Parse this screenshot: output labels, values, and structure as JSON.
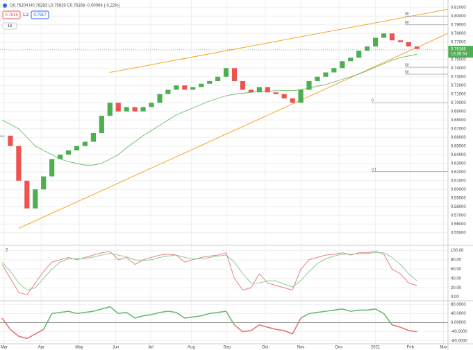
{
  "header": {
    "ohlc": "O0.76204 H0.76283 L0.75829 C0.76168 -0.00064 (-0.22%)",
    "sell": "0.7616",
    "spread": "1.2",
    "buy": "0.7617",
    "indicator_count": "16"
  },
  "chart_data": [
    {
      "type": "candlestick",
      "up_color": "#4caf50",
      "down_color": "#ef5350",
      "x": [
        0,
        1,
        2,
        3,
        4,
        5,
        6,
        7,
        8,
        9,
        10,
        11,
        12,
        13,
        14,
        15,
        16,
        17,
        18,
        19,
        20,
        21,
        22,
        23,
        24,
        25,
        26,
        27,
        28,
        29,
        30,
        31,
        32,
        33,
        34,
        35,
        36,
        37,
        38,
        39,
        40,
        41,
        42,
        43,
        44,
        45,
        46,
        47,
        48,
        49,
        50
      ],
      "values": [
        0.662,
        0.65,
        0.61,
        0.578,
        0.6,
        0.615,
        0.635,
        0.64,
        0.645,
        0.65,
        0.655,
        0.665,
        0.685,
        0.7,
        0.69,
        0.695,
        0.69,
        0.695,
        0.7,
        0.71,
        0.715,
        0.72,
        0.715,
        0.718,
        0.722,
        0.725,
        0.73,
        0.74,
        0.725,
        0.715,
        0.712,
        0.718,
        0.712,
        0.71,
        0.705,
        0.7,
        0.715,
        0.725,
        0.73,
        0.735,
        0.74,
        0.748,
        0.752,
        0.76,
        0.765,
        0.775,
        0.78,
        0.772,
        0.77,
        0.765,
        0.762
      ],
      "ma": {
        "color": "#66bb6a",
        "values": [
          0.68,
          0.675,
          0.67,
          0.66,
          0.65,
          0.645,
          0.64,
          0.635,
          0.632,
          0.63,
          0.628,
          0.628,
          0.63,
          0.635,
          0.64,
          0.648,
          0.655,
          0.662,
          0.668,
          0.674,
          0.68,
          0.686,
          0.69,
          0.694,
          0.698,
          0.702,
          0.705,
          0.708,
          0.71,
          0.711,
          0.712,
          0.713,
          0.713,
          0.714,
          0.714,
          0.714,
          0.715,
          0.717,
          0.719,
          0.721,
          0.724,
          0.727,
          0.73,
          0.733,
          0.737,
          0.741,
          0.745,
          0.749,
          0.752,
          0.754,
          0.756
        ]
      },
      "trendlines": [
        {
          "color": "#f5a623",
          "x": [
            2,
            56
          ],
          "y": [
            0.555,
            0.79
          ]
        },
        {
          "color": "#f5a623",
          "x": [
            13,
            56
          ],
          "y": [
            0.735,
            0.812
          ]
        }
      ],
      "levels": [
        {
          "value": 0.8,
          "label": "90"
        },
        {
          "value": 0.79,
          "label": "80"
        },
        {
          "value": 0.741,
          "label": "50"
        },
        {
          "value": 0.733,
          "label": "50"
        },
        {
          "value": 0.7,
          "label": "0"
        },
        {
          "value": 0.6205,
          "label": "0.1"
        }
      ],
      "last_price": 0.76168,
      "last_time": "13:38:34",
      "xlim": [
        0,
        56
      ],
      "ylim": [
        0.537,
        0.817
      ],
      "xticks": [
        {
          "value": 0.25,
          "label": "Mar"
        },
        {
          "value": 4.7,
          "label": "Apr"
        },
        {
          "value": 9.3,
          "label": "May"
        },
        {
          "value": 13.7,
          "label": "Jun"
        },
        {
          "value": 17.9,
          "label": "Jul"
        },
        {
          "value": 22.8,
          "label": "Aug"
        },
        {
          "value": 27.1,
          "label": "Sep"
        },
        {
          "value": 31.7,
          "label": "Oct"
        },
        {
          "value": 36,
          "label": "Nov"
        },
        {
          "value": 40.6,
          "label": "Dec"
        },
        {
          "value": 45,
          "label": "2021"
        },
        {
          "value": 49.2,
          "label": "Feb"
        },
        {
          "value": 53.2,
          "label": "Mar"
        }
      ],
      "yticks": [
        {
          "value": 0.55,
          "label": "0.55000"
        },
        {
          "value": 0.56,
          "label": "0.56000"
        },
        {
          "value": 0.57,
          "label": "0.57000"
        },
        {
          "value": 0.58,
          "label": "0.58000"
        },
        {
          "value": 0.59,
          "label": "0.59000"
        },
        {
          "value": 0.6,
          "label": "0.60000"
        },
        {
          "value": 0.61,
          "label": "0.61000"
        },
        {
          "value": 0.62,
          "label": "0.62000"
        },
        {
          "value": 0.63,
          "label": "0.63000"
        },
        {
          "value": 0.64,
          "label": "0.64000"
        },
        {
          "value": 0.65,
          "label": "0.65000"
        },
        {
          "value": 0.66,
          "label": "0.66000"
        },
        {
          "value": 0.67,
          "label": "0.67000"
        },
        {
          "value": 0.68,
          "label": "0.68000"
        },
        {
          "value": 0.69,
          "label": "0.69000"
        },
        {
          "value": 0.7,
          "label": "0.70000"
        },
        {
          "value": 0.71,
          "label": "0.71000"
        },
        {
          "value": 0.72,
          "label": "0.72000"
        },
        {
          "value": 0.73,
          "label": "0.73000"
        },
        {
          "value": 0.74,
          "label": "0.74000"
        },
        {
          "value": 0.75,
          "label": "0.75000"
        },
        {
          "value": 0.76,
          "label": "0.76000"
        },
        {
          "value": 0.77,
          "label": "0.77000"
        },
        {
          "value": 0.78,
          "label": "0.78000"
        },
        {
          "value": 0.79,
          "label": "0.79000"
        },
        {
          "value": 0.8,
          "label": "0.80000"
        },
        {
          "value": 0.81,
          "label": "0.81000"
        }
      ]
    },
    {
      "type": "line",
      "pane_label": "2",
      "ylim": [
        -5,
        105
      ],
      "yticks": [
        {
          "value": 0,
          "label": "0.00"
        },
        {
          "value": 20,
          "label": "20.00"
        },
        {
          "value": 40,
          "label": "40.00"
        },
        {
          "value": 60,
          "label": "60.00"
        },
        {
          "value": 80,
          "label": "80.00"
        },
        {
          "value": 100,
          "label": "100.00"
        }
      ],
      "series": [
        {
          "color": "#e57373",
          "values": [
            70,
            40,
            10,
            5,
            30,
            55,
            75,
            80,
            85,
            80,
            85,
            90,
            95,
            98,
            80,
            85,
            70,
            80,
            85,
            90,
            92,
            90,
            75,
            80,
            85,
            88,
            90,
            95,
            40,
            15,
            20,
            50,
            30,
            25,
            20,
            15,
            60,
            80,
            85,
            90,
            92,
            95,
            90,
            95,
            95,
            98,
            92,
            60,
            50,
            30,
            25
          ]
        },
        {
          "color": "#81c784",
          "values": [
            75,
            55,
            30,
            15,
            20,
            40,
            60,
            75,
            82,
            82,
            83,
            86,
            90,
            94,
            90,
            86,
            80,
            78,
            80,
            85,
            88,
            90,
            85,
            82,
            82,
            85,
            88,
            90,
            75,
            50,
            30,
            30,
            35,
            35,
            28,
            22,
            35,
            55,
            72,
            82,
            88,
            92,
            92,
            93,
            94,
            95,
            95,
            85,
            70,
            50,
            35
          ]
        }
      ]
    },
    {
      "type": "momentum",
      "up_color": "#66bb6a",
      "down_color": "#e57373",
      "ylim": [
        -90,
        90
      ],
      "yticks": [
        {
          "value": 80,
          "label": "80.0000"
        },
        {
          "value": 40,
          "label": "40.0000"
        },
        {
          "value": 0,
          "label": "0.00000"
        },
        {
          "value": -40,
          "label": "-40.0000"
        },
        {
          "value": -80,
          "label": "-80.0000"
        }
      ],
      "values": [
        20,
        -30,
        -60,
        -70,
        -50,
        -30,
        40,
        45,
        50,
        40,
        45,
        50,
        60,
        70,
        40,
        45,
        20,
        30,
        35,
        45,
        50,
        45,
        20,
        25,
        30,
        40,
        45,
        50,
        -10,
        -40,
        -35,
        -10,
        -20,
        -30,
        -35,
        -50,
        20,
        40,
        45,
        50,
        55,
        60,
        50,
        55,
        55,
        60,
        40,
        -10,
        -20,
        -35,
        -40
      ]
    }
  ]
}
